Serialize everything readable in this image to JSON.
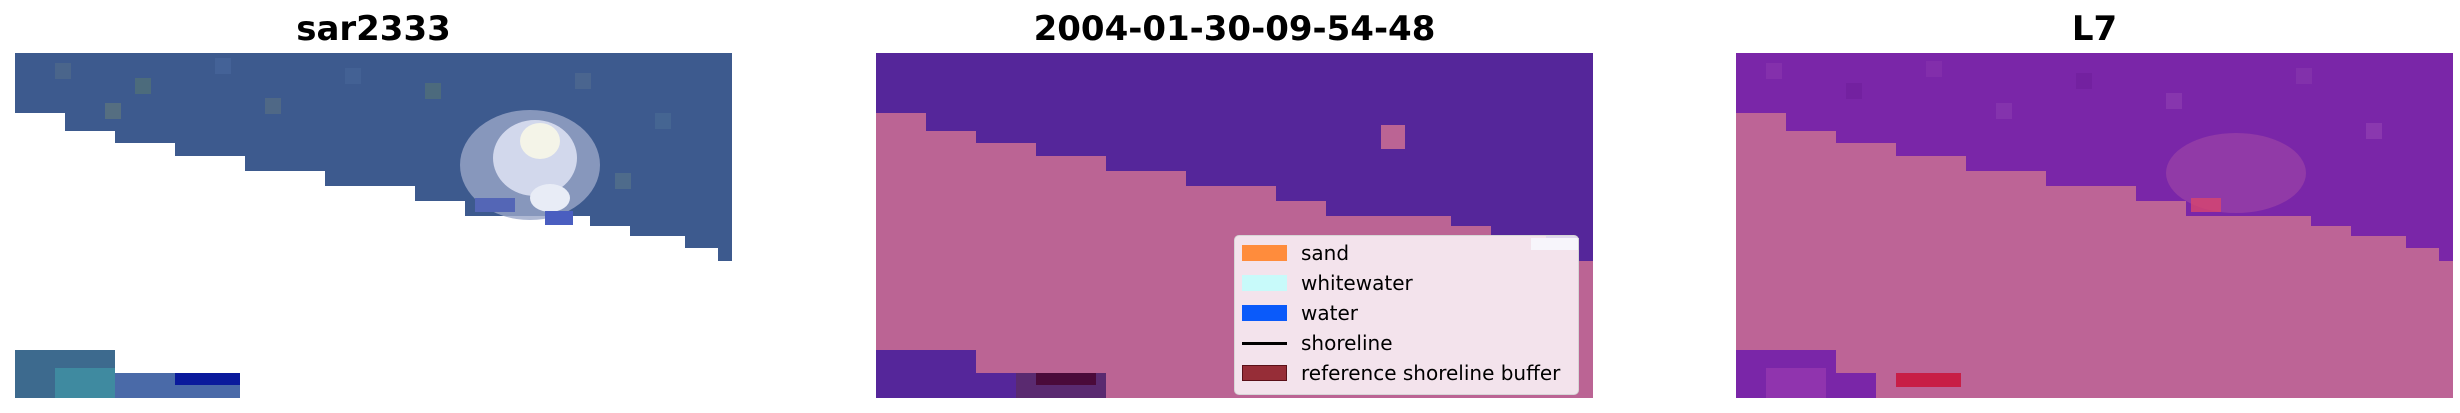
{
  "panels": [
    {
      "title": "sar2333"
    },
    {
      "title": "2004-01-30-09-54-48"
    },
    {
      "title": "L7"
    }
  ],
  "legend": {
    "entries": [
      {
        "label": "sand",
        "color": "#ff8c3c",
        "kind": "patch"
      },
      {
        "label": "whitewater",
        "color": "#c8fafa",
        "kind": "patch"
      },
      {
        "label": "water",
        "color": "#0a5afa",
        "kind": "patch"
      },
      {
        "label": "shoreline",
        "color": "#000000",
        "kind": "line"
      },
      {
        "label": "reference shoreline buffer",
        "color": "#962d37",
        "kind": "patch"
      }
    ]
  },
  "colors": {
    "sea_rgb": "#3d5a8e",
    "classified_water": "#55269a",
    "classified_land": "#bb6494",
    "l7_sea": "#7a26a8",
    "l7_land": "#bd6496",
    "buffer_red": "#c81e46"
  }
}
